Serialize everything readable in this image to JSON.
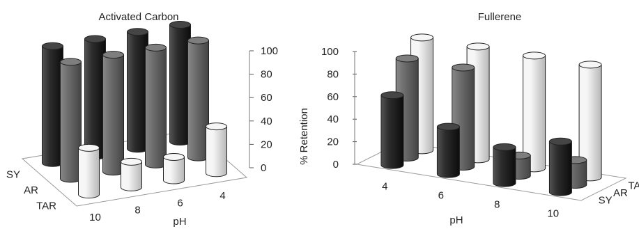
{
  "chart_data": [
    {
      "type": "bar",
      "subtype": "3d-cylinder",
      "title": "Activated Carbon",
      "xlabel": "pH",
      "ylabel": "",
      "categories": [
        "4",
        "6",
        "8",
        "10"
      ],
      "series": [
        {
          "name": "SY",
          "color": "#101010",
          "values": [
            100,
            100,
            100,
            100
          ]
        },
        {
          "name": "AR",
          "color": "#5a5a5a",
          "values": [
            100,
            100,
            100,
            100
          ]
        },
        {
          "name": "TAR",
          "color": "#f4f4f4",
          "values": [
            40,
            20,
            22,
            40
          ]
        }
      ],
      "ylim": [
        0,
        100
      ],
      "yticks": [
        "0",
        "20",
        "40",
        "60",
        "80",
        "100"
      ]
    },
    {
      "type": "bar",
      "subtype": "3d-cylinder",
      "title": "Fullerene",
      "xlabel": "pH",
      "ylabel": "% Retention",
      "categories": [
        "4",
        "6",
        "8",
        "10"
      ],
      "series": [
        {
          "name": "SY",
          "color": "#101010",
          "values": [
            62,
            42,
            32,
            45
          ]
        },
        {
          "name": "AR",
          "color": "#5a5a5a",
          "values": [
            88,
            88,
            18,
            22
          ]
        },
        {
          "name": "TAR",
          "color": "#f4f4f4",
          "values": [
            100,
            100,
            100,
            100
          ]
        }
      ],
      "ylim": [
        0,
        100
      ],
      "yticks": [
        "0",
        "20",
        "40",
        "60",
        "80",
        "100"
      ]
    }
  ]
}
